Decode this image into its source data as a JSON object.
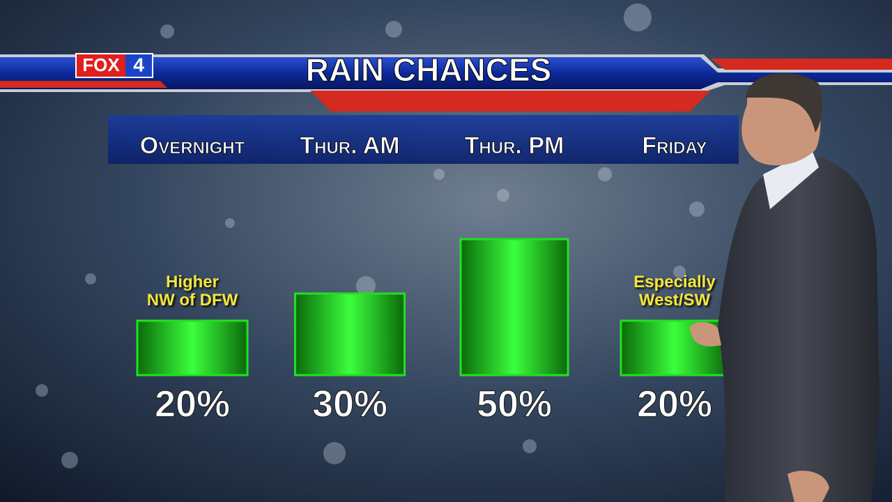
{
  "header": {
    "logo": "FOX",
    "channel": "4"
  },
  "chart_data": {
    "type": "bar",
    "title": "RAIN CHANCES",
    "categories": [
      "Overnight",
      "Thur. AM",
      "Thur. PM",
      "Friday"
    ],
    "values": [
      20,
      30,
      50,
      20
    ],
    "value_labels": [
      "20%",
      "30%",
      "50%",
      "20%"
    ],
    "color": "#22e022",
    "annotations": [
      "Higher\nNW of DFW",
      null,
      null,
      "Especially\nWest/SW"
    ]
  }
}
